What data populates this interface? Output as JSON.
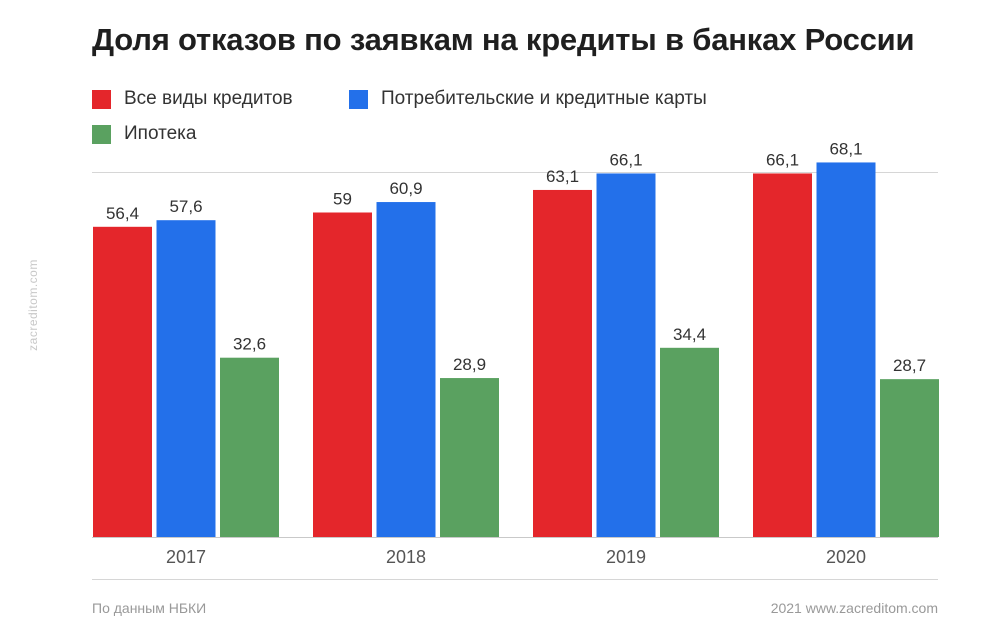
{
  "chart_data": {
    "type": "bar",
    "title": "Доля отказов по заявкам на кредиты в банках России",
    "categories": [
      "2017",
      "2018",
      "2019",
      "2020"
    ],
    "series": [
      {
        "name": "Все виды кредитов",
        "color": "#e4262b",
        "values": [
          56.4,
          59,
          63.1,
          66.1
        ],
        "labels": [
          "56,4",
          "59",
          "63,1",
          "66,1"
        ]
      },
      {
        "name": "Потребительские и кредитные карты",
        "color": "#2370ea",
        "values": [
          57.6,
          60.9,
          66.1,
          68.1
        ],
        "labels": [
          "57,6",
          "60,9",
          "66,1",
          "68,1"
        ]
      },
      {
        "name": "Ипотека",
        "color": "#5aa160",
        "values": [
          32.6,
          28.9,
          34.4,
          28.7
        ],
        "labels": [
          "32,6",
          "28,9",
          "34,4",
          "28,7"
        ]
      }
    ],
    "legend_position": "top-left",
    "grid": false,
    "data_labels": true
  },
  "footer": {
    "source": "По данным НБКИ",
    "credit": "2021 www.zacreditom.com"
  },
  "watermark": "zacreditom.com"
}
